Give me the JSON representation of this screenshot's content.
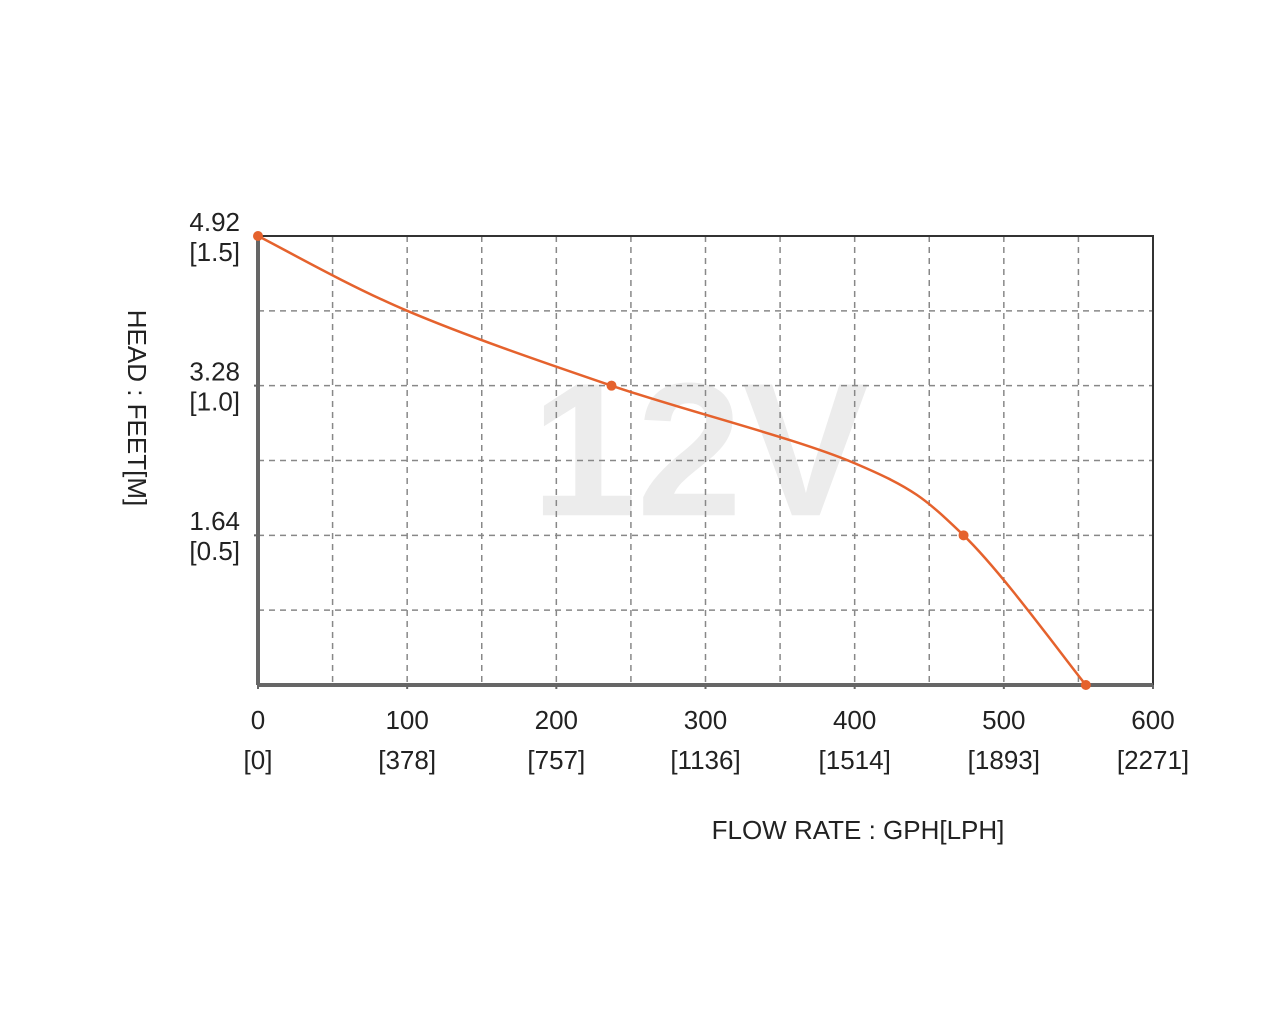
{
  "chart_data": {
    "type": "line",
    "watermark": "12V",
    "xlabel": "FLOW RATE : GPH[LPH]",
    "ylabel": "HEAD : FEET[M]",
    "xlim": [
      0,
      600
    ],
    "ylim": [
      0,
      4.92
    ],
    "xticks": [
      0,
      100,
      200,
      300,
      400,
      500,
      600
    ],
    "xtick_sublabels": [
      "[0]",
      "[378]",
      "[757]",
      "[1136]",
      "[1514]",
      "[1893]",
      "[2271]"
    ],
    "yticks": [
      1.64,
      3.28,
      4.92
    ],
    "ytick_sublabels": [
      "[0.5]",
      "[1.0]",
      "[1.5]"
    ],
    "x_grid": [
      50,
      100,
      150,
      200,
      250,
      300,
      350,
      400,
      450,
      500,
      550
    ],
    "y_grid": [
      0.82,
      1.64,
      2.46,
      3.28,
      4.1
    ],
    "grid": true,
    "series": [
      {
        "name": "12V",
        "color": "#e5622d",
        "x": [
          0,
          100,
          237,
          400,
          473,
          555
        ],
        "values": [
          4.92,
          4.1,
          3.28,
          2.43,
          1.64,
          0
        ],
        "marker_indices": [
          0,
          2,
          4,
          5
        ]
      }
    ]
  }
}
